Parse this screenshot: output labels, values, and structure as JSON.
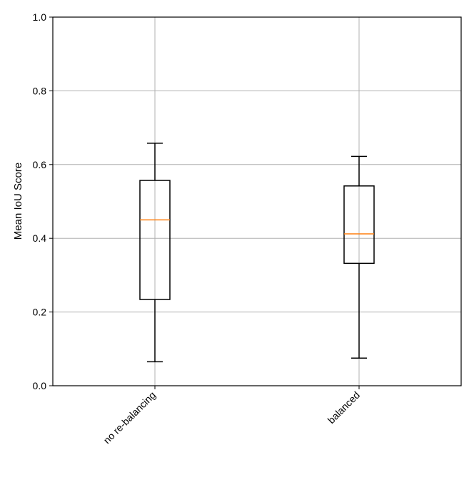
{
  "chart_data": {
    "type": "box",
    "title": "",
    "xlabel": "",
    "ylabel": "Mean IoU Score",
    "ylim": [
      0.0,
      1.0
    ],
    "yticks": [
      0.0,
      0.2,
      0.4,
      0.6,
      0.8,
      1.0
    ],
    "ytick_labels": [
      "0.0",
      "0.2",
      "0.4",
      "0.6",
      "0.8",
      "1.0"
    ],
    "categories": [
      "no re-balancing",
      "balanced"
    ],
    "grid": true,
    "boxes": [
      {
        "whisker_low": 0.065,
        "q1": 0.234,
        "median": 0.45,
        "q3": 0.557,
        "whisker_high": 0.658
      },
      {
        "whisker_low": 0.075,
        "q1": 0.332,
        "median": 0.412,
        "q3": 0.542,
        "whisker_high": 0.622
      }
    ],
    "colors": {
      "box": "#000000",
      "median": "#ff7f0e",
      "grid": "#b0b0b0"
    }
  }
}
